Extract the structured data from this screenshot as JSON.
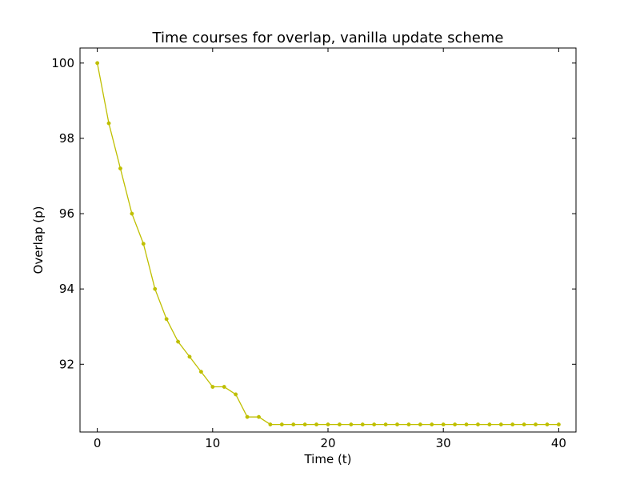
{
  "chart_data": {
    "type": "line",
    "title": "Time courses for overlap, vanilla update scheme",
    "xlabel": "Time (t)",
    "ylabel": "Overlap (p)",
    "xlim": [
      -1.5,
      41.5
    ],
    "ylim": [
      90.2,
      100.4
    ],
    "xticks": [
      0,
      10,
      20,
      30,
      40
    ],
    "yticks": [
      92,
      94,
      96,
      98,
      100
    ],
    "grid": false,
    "series": [
      {
        "color": "#bfbf00",
        "marker": "circle",
        "x": [
          0,
          1,
          2,
          3,
          4,
          5,
          6,
          7,
          8,
          9,
          10,
          11,
          12,
          13,
          14,
          15,
          16,
          17,
          18,
          19,
          20,
          21,
          22,
          23,
          24,
          25,
          26,
          27,
          28,
          29,
          30,
          31,
          32,
          33,
          34,
          35,
          36,
          37,
          38,
          39,
          40
        ],
        "y": [
          100.0,
          98.4,
          97.2,
          96.0,
          95.2,
          94.0,
          93.2,
          92.6,
          92.2,
          91.8,
          91.4,
          91.4,
          91.2,
          90.6,
          90.6,
          90.4,
          90.4,
          90.4,
          90.4,
          90.4,
          90.4,
          90.4,
          90.4,
          90.4,
          90.4,
          90.4,
          90.4,
          90.4,
          90.4,
          90.4,
          90.4,
          90.4,
          90.4,
          90.4,
          90.4,
          90.4,
          90.4,
          90.4,
          90.4,
          90.4,
          90.4
        ]
      }
    ]
  }
}
